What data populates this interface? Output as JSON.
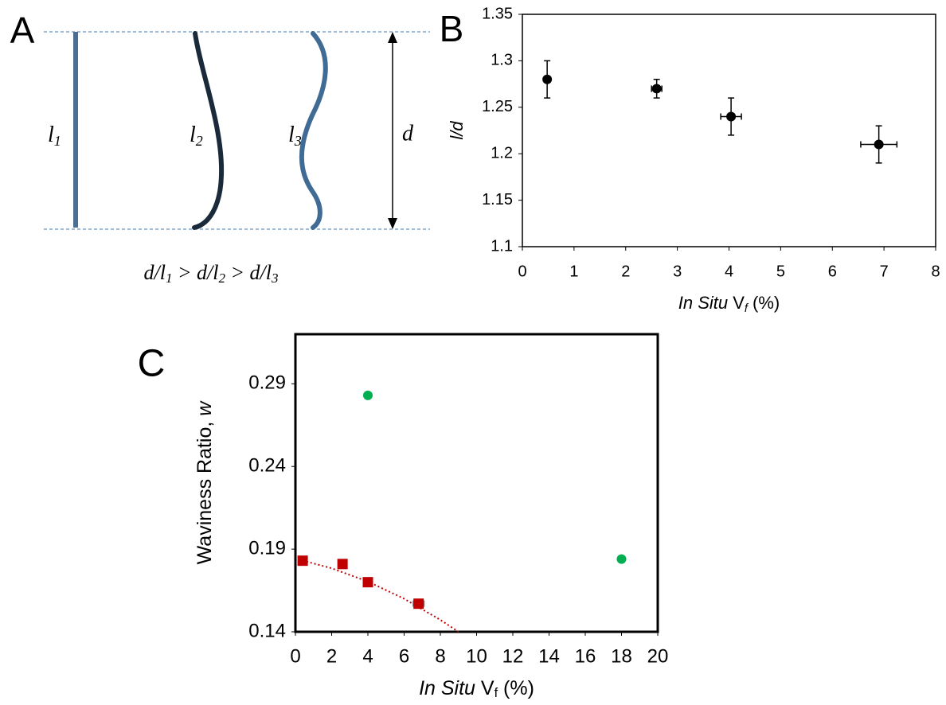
{
  "diagram": {
    "label": "A",
    "lengths": [
      {
        "base": "l",
        "sub": "1"
      },
      {
        "base": "l",
        "sub": "2"
      },
      {
        "base": "l",
        "sub": "3"
      }
    ],
    "distance": "d",
    "equation_parts": [
      "d/l",
      "1",
      " > d/l",
      "2",
      " > d/l",
      "3"
    ]
  },
  "chart_data": [
    {
      "type": "scatter",
      "label": "B",
      "ylabel": "l/d",
      "xlabel_parts": [
        "In Situ",
        " V",
        "f",
        " (%)"
      ],
      "xlim": [
        0,
        8
      ],
      "xticks": [
        0,
        1,
        2,
        3,
        4,
        5,
        6,
        7,
        8
      ],
      "ylim": [
        1.1,
        1.35
      ],
      "yticks": [
        1.1,
        1.15,
        1.2,
        1.25,
        1.3,
        1.35
      ],
      "series": [
        {
          "marker": "circle",
          "color": "#000000",
          "x": [
            0.48,
            2.6,
            4.04,
            6.9
          ],
          "values": [
            1.28,
            1.27,
            1.24,
            1.21
          ],
          "xerr": [
            0.05,
            0.1,
            0.2,
            0.35
          ],
          "yerr": [
            0.02,
            0.01,
            0.02,
            0.02
          ]
        }
      ]
    },
    {
      "type": "scatter",
      "label": "C",
      "ylabel_parts": [
        "Waviness Ratio, ",
        "w"
      ],
      "xlabel_parts": [
        "In Situ",
        " V",
        "f",
        " (%)"
      ],
      "xlim": [
        0,
        20
      ],
      "xticks": [
        0,
        2,
        4,
        6,
        8,
        10,
        12,
        14,
        16,
        18,
        20
      ],
      "ylim": [
        0.14,
        0.32
      ],
      "yticks": [
        0.14,
        0.19,
        0.24,
        0.29
      ],
      "series": [
        {
          "marker": "square",
          "color": "#c00000",
          "x": [
            0.4,
            2.6,
            4.0,
            6.8
          ],
          "values": [
            0.183,
            0.181,
            0.17,
            0.157
          ],
          "xerr": [
            null,
            null,
            null,
            0.3
          ]
        },
        {
          "marker": "dotted-line",
          "color": "#c00000",
          "x": [
            0.4,
            2,
            4,
            6,
            8,
            9.0
          ],
          "values": [
            0.1831,
            0.1784,
            0.1704,
            0.16,
            0.1472,
            0.14
          ]
        },
        {
          "marker": "circle",
          "color": "#00b050",
          "x": [
            4.0,
            18.0
          ],
          "values": [
            0.283,
            0.184
          ]
        }
      ]
    }
  ]
}
